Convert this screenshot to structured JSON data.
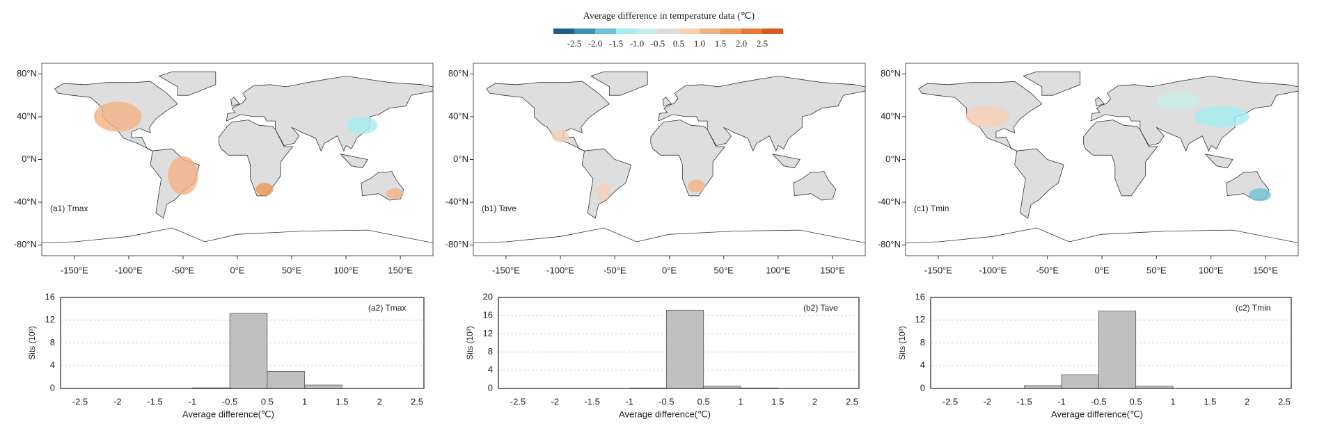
{
  "colorbar": {
    "title": "Average difference in temperature data (℃)",
    "colors": [
      "#1b5f8a",
      "#3d8fb6",
      "#70c1d6",
      "#a3ecf0",
      "#c8ede8",
      "#dcdcdc",
      "#f6d0b2",
      "#f2b283",
      "#ee9655",
      "#e67a34",
      "#d95a1e"
    ],
    "ticks": [
      {
        "value": -2.5,
        "label": "-2.5"
      },
      {
        "value": -2,
        "label": "-2.0"
      },
      {
        "value": -1.5,
        "label": "-1.5"
      },
      {
        "value": -1,
        "label": "-1.0"
      },
      {
        "value": -0.5,
        "label": "-0.5"
      },
      {
        "value": 0.5,
        "label": "0.5"
      },
      {
        "value": 1,
        "label": "1.0"
      },
      {
        "value": 1.5,
        "label": "1.5"
      },
      {
        "value": 2,
        "label": "2.0"
      },
      {
        "value": 2.5,
        "label": "2.5"
      }
    ]
  },
  "chart_data": [
    {
      "type": "map",
      "label": "(a1) Tmax",
      "xlim": [
        -180,
        180
      ],
      "ylim": [
        -90,
        90
      ],
      "xticks": [
        {
          "value": -150,
          "label": "-150°E"
        },
        {
          "value": -100,
          "label": "-100°E"
        },
        {
          "value": -50,
          "label": "-50°E"
        },
        {
          "value": 0,
          "label": "0°E"
        },
        {
          "value": 50,
          "label": "50°E"
        },
        {
          "value": 100,
          "label": "100°E"
        },
        {
          "value": 150,
          "label": "150°E"
        }
      ],
      "yticks": [
        {
          "value": 80,
          "label": "80°N"
        },
        {
          "value": 40,
          "label": "40°N"
        },
        {
          "value": 0,
          "label": "0°N"
        },
        {
          "value": -40,
          "label": "-40°N"
        },
        {
          "value": -80,
          "label": "-80°N"
        }
      ]
    },
    {
      "type": "map",
      "label": "(b1) Tave",
      "xlim": [
        -180,
        180
      ],
      "ylim": [
        -90,
        90
      ],
      "xticks": [
        {
          "value": -150,
          "label": "-150°E"
        },
        {
          "value": -100,
          "label": "-100°E"
        },
        {
          "value": -50,
          "label": "-50°E"
        },
        {
          "value": 0,
          "label": "0°E"
        },
        {
          "value": 50,
          "label": "50°E"
        },
        {
          "value": 100,
          "label": "100°E"
        },
        {
          "value": 150,
          "label": "150°E"
        }
      ],
      "yticks": [
        {
          "value": 80,
          "label": "80°N"
        },
        {
          "value": 40,
          "label": "40°N"
        },
        {
          "value": 0,
          "label": "0°N"
        },
        {
          "value": -40,
          "label": "-40°N"
        },
        {
          "value": -80,
          "label": "-80°N"
        }
      ]
    },
    {
      "type": "map",
      "label": "(c1) Tmin",
      "xlim": [
        -180,
        180
      ],
      "ylim": [
        -90,
        90
      ],
      "xticks": [
        {
          "value": -150,
          "label": "-150°E"
        },
        {
          "value": -100,
          "label": "-100°E"
        },
        {
          "value": -50,
          "label": "-50°E"
        },
        {
          "value": 0,
          "label": "0°E"
        },
        {
          "value": 50,
          "label": "50°E"
        },
        {
          "value": 100,
          "label": "100°E"
        },
        {
          "value": 150,
          "label": "150°E"
        }
      ],
      "yticks": [
        {
          "value": 80,
          "label": "80°N"
        },
        {
          "value": 40,
          "label": "40°N"
        },
        {
          "value": 0,
          "label": "0°N"
        },
        {
          "value": -40,
          "label": "-40°N"
        },
        {
          "value": -80,
          "label": "-80°N"
        }
      ]
    },
    {
      "type": "histogram",
      "label": "(a2) Tmax",
      "x_label": "Average difference(℃)",
      "y_label": "Sits (10³)",
      "color": "#c0c0c0",
      "bins": [
        -2.5,
        -2,
        -1.5,
        -1,
        -0.5,
        0.5,
        1,
        1.5,
        2,
        2.5
      ],
      "values": [
        0,
        0,
        0,
        0.1,
        13.2,
        3.0,
        0.6,
        0,
        0
      ],
      "ylim": [
        0,
        16
      ],
      "yticks": [
        0,
        4,
        8,
        12,
        16
      ],
      "grid": true
    },
    {
      "type": "histogram",
      "label": "(b2) Tave",
      "x_label": "Average difference(℃)",
      "y_label": "Sits (10³)",
      "color": "#c0c0c0",
      "bins": [
        -2.5,
        -2,
        -1.5,
        -1,
        -0.5,
        0.5,
        1,
        1.5,
        2,
        2.5
      ],
      "values": [
        0,
        0,
        0,
        0.1,
        17.2,
        0.5,
        0.1,
        0,
        0
      ],
      "ylim": [
        0,
        20
      ],
      "yticks": [
        0,
        4,
        8,
        12,
        16,
        20
      ],
      "grid": true
    },
    {
      "type": "histogram",
      "label": "(c2) Tmin",
      "x_label": "Average difference(℃)",
      "y_label": "Sits (10³)",
      "color": "#c0c0c0",
      "bins": [
        -2.5,
        -2,
        -1.5,
        -1,
        -0.5,
        0.5,
        1,
        1.5,
        2,
        2.5
      ],
      "values": [
        0,
        0,
        0.5,
        2.4,
        13.6,
        0.4,
        0,
        0,
        0
      ],
      "ylim": [
        0,
        16
      ],
      "yticks": [
        0,
        4,
        8,
        12,
        16
      ],
      "grid": true
    }
  ]
}
